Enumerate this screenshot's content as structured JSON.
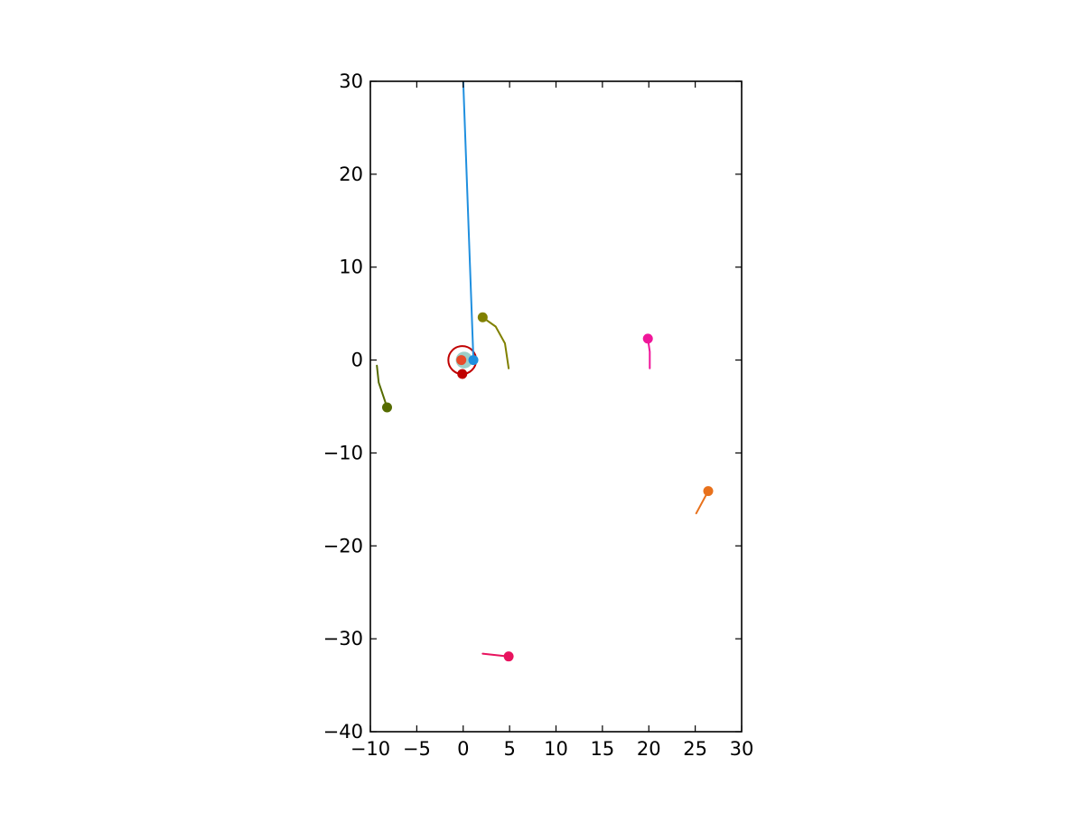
{
  "chart_data": {
    "type": "line",
    "title": "",
    "xlabel": "",
    "ylabel": "",
    "xlim": [
      -10,
      30
    ],
    "ylim": [
      -40,
      30
    ],
    "grid": false,
    "legend": "none",
    "xticks": [
      -10,
      -5,
      0,
      5,
      10,
      15,
      20,
      25,
      30
    ],
    "yticks": [
      -40,
      -30,
      -20,
      -10,
      0,
      10,
      20,
      30
    ],
    "xtick_labels": [
      "−10",
      "−5",
      "0",
      "5",
      "10",
      "15",
      "20",
      "25",
      "30"
    ],
    "ytick_labels": [
      "−40",
      "−30",
      "−20",
      "−10",
      "0",
      "10",
      "20",
      "30"
    ],
    "series": [
      {
        "color": "#1f8fdf",
        "trail": [
          [
            0,
            30
          ],
          [
            1.1,
            0
          ]
        ],
        "marker": [
          1.1,
          0
        ]
      },
      {
        "color": "#808000",
        "trail": [
          [
            2.1,
            4.6
          ],
          [
            3.5,
            3.6
          ],
          [
            4.5,
            1.8
          ],
          [
            4.9,
            -0.9
          ]
        ],
        "marker": [
          2.1,
          4.6
        ]
      },
      {
        "color": "#556b00",
        "trail": [
          [
            -9.3,
            -0.6
          ],
          [
            -9.1,
            -2.4
          ],
          [
            -8.6,
            -3.9
          ],
          [
            -8.2,
            -5.1
          ]
        ],
        "marker": [
          -8.2,
          -5.1
        ]
      },
      {
        "color": "#f0169a",
        "trail": [
          [
            20.1,
            -0.9
          ],
          [
            20.1,
            0.9
          ],
          [
            19.9,
            2.3
          ]
        ],
        "marker": [
          19.9,
          2.3
        ]
      },
      {
        "color": "#e8711c",
        "trail": [
          [
            25.1,
            -16.5
          ],
          [
            26.4,
            -14.1
          ]
        ],
        "marker": [
          26.4,
          -14.1
        ]
      },
      {
        "color": "#e8135e",
        "trail": [
          [
            2.1,
            -31.6
          ],
          [
            4.9,
            -31.9
          ]
        ],
        "marker": [
          4.9,
          -31.9
        ]
      },
      {
        "color": "#c00000",
        "trail": [],
        "marker": [
          -0.1,
          -1.5
        ]
      },
      {
        "color": "#e84a2a",
        "trail": [],
        "marker": [
          -0.2,
          0
        ]
      }
    ],
    "rings": [
      {
        "center": [
          -0.1,
          0
        ],
        "radius": 1.5,
        "color": "#c00000"
      }
    ],
    "discs": [
      {
        "center": [
          0.1,
          0
        ],
        "radius": 0.9,
        "color": "#9ccfc9"
      }
    ]
  }
}
